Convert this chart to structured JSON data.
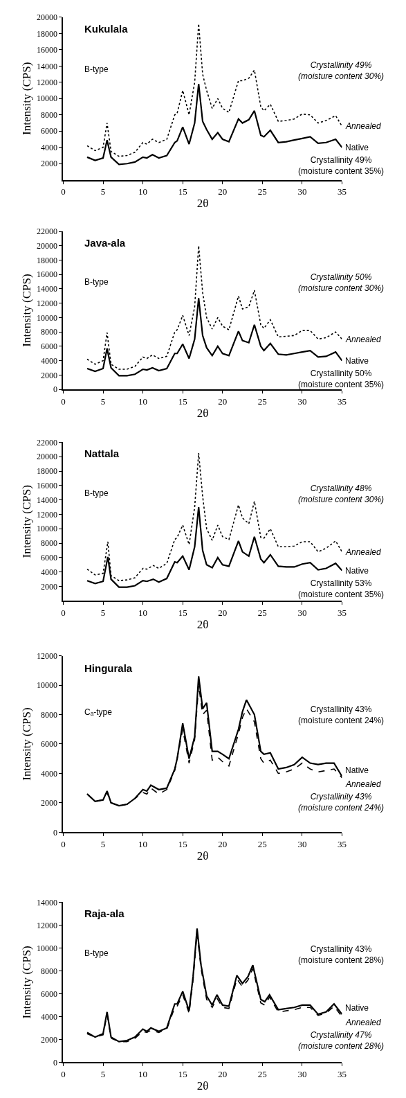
{
  "chart_data": [
    {
      "type": "line",
      "title": "Kukulala",
      "subtitle": "B-type",
      "xlabel": "2θ",
      "ylabel": "Intensity (CPS)",
      "xlim": [
        0,
        35
      ],
      "xticks": [
        0,
        5,
        10,
        15,
        20,
        25,
        30,
        35
      ],
      "ylim": [
        0,
        20000
      ],
      "yticks": [
        2000,
        4000,
        6000,
        8000,
        10000,
        12000,
        14000,
        16000,
        18000,
        20000
      ],
      "annotations": [
        "Crystallinity 49%\n(moisture content 30%)",
        "Crystallinity 49%\n(moisture content 35%)"
      ],
      "x": [
        3,
        4,
        5,
        5.5,
        6,
        7,
        8,
        9,
        10,
        10.5,
        11.2,
        12,
        13,
        14,
        14.3,
        15,
        15.8,
        16.5,
        17,
        17.5,
        18,
        18.7,
        19.4,
        20,
        20.8,
        22,
        22.5,
        23.3,
        24,
        24.8,
        25.2,
        26,
        27,
        28,
        29,
        30,
        31,
        32,
        33,
        34.2,
        35
      ],
      "series": [
        {
          "name": "Annealed",
          "color": "#000000",
          "line_style": "dotted",
          "values": [
            4200,
            3600,
            4000,
            7000,
            3500,
            2900,
            3000,
            3400,
            4600,
            4400,
            5000,
            4600,
            5000,
            8000,
            8200,
            11000,
            8000,
            12000,
            19200,
            13000,
            11000,
            8800,
            10000,
            8800,
            8300,
            12200,
            12200,
            12500,
            13500,
            9000,
            8500,
            9300,
            7200,
            7300,
            7500,
            8100,
            8000,
            7000,
            7300,
            7900,
            6600
          ]
        },
        {
          "name": "Native",
          "color": "#000000",
          "line_style": "solid",
          "values": [
            2800,
            2400,
            2700,
            4900,
            2800,
            1900,
            2000,
            2200,
            2800,
            2700,
            3100,
            2700,
            3000,
            4600,
            4800,
            6500,
            4400,
            7000,
            11800,
            7200,
            6200,
            5000,
            5800,
            5000,
            4700,
            7500,
            7000,
            7400,
            8500,
            5500,
            5300,
            6100,
            4600,
            4700,
            4900,
            5100,
            5300,
            4500,
            4600,
            5000,
            4000
          ]
        }
      ]
    },
    {
      "type": "line",
      "title": "Java-ala",
      "subtitle": "B-type",
      "xlabel": "2θ",
      "ylabel": "Intensity (CPS)",
      "xlim": [
        0,
        35
      ],
      "xticks": [
        0,
        5,
        10,
        15,
        20,
        25,
        30,
        35
      ],
      "ylim": [
        0,
        22000
      ],
      "yticks": [
        0,
        2000,
        4000,
        6000,
        8000,
        10000,
        12000,
        14000,
        16000,
        18000,
        20000,
        22000
      ],
      "annotations": [
        "Crystallinity 50%\n(moisture content 30%)",
        "Crystallinity 50%\n(moisture content 35%)"
      ],
      "x": [
        3,
        4,
        5,
        5.5,
        6,
        7,
        8,
        9,
        10,
        10.5,
        11.2,
        12,
        13,
        14,
        14.3,
        15,
        15.8,
        16.5,
        17,
        17.5,
        18,
        18.7,
        19.4,
        20,
        20.8,
        22,
        22.5,
        23.3,
        24,
        24.8,
        25.2,
        26,
        27,
        28,
        29,
        30,
        31,
        32,
        33,
        34.2,
        35
      ],
      "series": [
        {
          "name": "Annealed",
          "color": "#000000",
          "line_style": "dotted",
          "values": [
            4200,
            3500,
            4000,
            7900,
            3500,
            2800,
            2800,
            3200,
            4500,
            4300,
            4800,
            4300,
            4600,
            8000,
            8300,
            10300,
            7500,
            11500,
            20000,
            13500,
            10000,
            8400,
            10000,
            8800,
            8300,
            13000,
            11200,
            11500,
            13800,
            9000,
            8500,
            9700,
            7300,
            7400,
            7500,
            8200,
            8200,
            7000,
            7200,
            8000,
            7000
          ]
        },
        {
          "name": "Native",
          "color": "#000000",
          "line_style": "solid",
          "values": [
            2900,
            2500,
            2900,
            5700,
            3000,
            1900,
            1900,
            2100,
            2800,
            2700,
            3000,
            2600,
            2900,
            5000,
            5000,
            6300,
            4300,
            7000,
            12700,
            7500,
            5800,
            4700,
            6000,
            5000,
            4700,
            8100,
            6800,
            6500,
            9000,
            6000,
            5400,
            6400,
            4900,
            4800,
            5000,
            5200,
            5400,
            4500,
            4600,
            5200,
            4000
          ]
        }
      ]
    },
    {
      "type": "line",
      "title": "Nattala",
      "subtitle": "B-type",
      "xlabel": "2θ",
      "ylabel": "Intensity (CPS)",
      "xlim": [
        0,
        35
      ],
      "xticks": [
        0,
        5,
        10,
        15,
        20,
        25,
        30,
        35
      ],
      "ylim": [
        0,
        22000
      ],
      "yticks": [
        2000,
        4000,
        6000,
        8000,
        10000,
        12000,
        14000,
        16000,
        18000,
        20000,
        22000
      ],
      "annotations": [
        "Crystallinity 48%\n(moisture content 30%)",
        "Crystallinity 53%\n(moisture content 35%)"
      ],
      "x": [
        3,
        4,
        5,
        5.6,
        6,
        7,
        8,
        9,
        10,
        10.5,
        11.3,
        12,
        13,
        14,
        14.3,
        15,
        15.8,
        16.5,
        17,
        17.5,
        18,
        18.7,
        19.4,
        20,
        20.8,
        22,
        22.5,
        23.3,
        24,
        24.8,
        25.2,
        26,
        27,
        28,
        29,
        30,
        31,
        32,
        33,
        34.2,
        35
      ],
      "series": [
        {
          "name": "Annealed",
          "color": "#000000",
          "line_style": "dotted",
          "values": [
            4400,
            3600,
            3800,
            8200,
            3500,
            2800,
            2900,
            3200,
            4500,
            4400,
            4900,
            4500,
            5200,
            8500,
            8800,
            10500,
            7800,
            13000,
            20500,
            14500,
            10000,
            8400,
            10500,
            8900,
            8500,
            13300,
            11500,
            10700,
            13800,
            8800,
            8700,
            10000,
            7500,
            7500,
            7600,
            8200,
            8200,
            6800,
            7300,
            8300,
            6800
          ]
        },
        {
          "name": "Native",
          "color": "#000000",
          "line_style": "solid",
          "values": [
            2800,
            2400,
            2700,
            6100,
            3000,
            1900,
            1900,
            2100,
            2800,
            2700,
            3000,
            2600,
            3100,
            5400,
            5300,
            6200,
            4300,
            7500,
            13000,
            7000,
            5000,
            4600,
            6000,
            5000,
            4800,
            8300,
            6800,
            6200,
            8900,
            5800,
            5300,
            6400,
            4800,
            4700,
            4700,
            5100,
            5300,
            4300,
            4500,
            5200,
            4200
          ]
        }
      ]
    },
    {
      "type": "line",
      "title": "Hingurala",
      "subtitle": "Cₐ-type",
      "xlabel": "2θ",
      "ylabel": "Intensity (CPS)",
      "xlim": [
        0,
        35
      ],
      "xticks": [
        0,
        5,
        10,
        15,
        20,
        25,
        30,
        35
      ],
      "ylim": [
        0,
        12000
      ],
      "yticks": [
        0,
        2000,
        4000,
        6000,
        8000,
        10000,
        12000
      ],
      "annotations": [
        "Crystallinity 43%\n(moisture content 24%)",
        "Crystallinity 43%\n(moisture content 24%)"
      ],
      "x": [
        3,
        4,
        5,
        5.5,
        6,
        7,
        8,
        9,
        10,
        10.5,
        11,
        12,
        13,
        14,
        14.3,
        15,
        15.8,
        16.5,
        17,
        17.5,
        18,
        18.7,
        19.4,
        20,
        20.8,
        22,
        22.5,
        23,
        24,
        24.8,
        25.2,
        26,
        27,
        28,
        29,
        30,
        31,
        32,
        33,
        34,
        35
      ],
      "series": [
        {
          "name": "Native",
          "color": "#000000",
          "line_style": "solid",
          "values": [
            2600,
            2100,
            2200,
            2800,
            2000,
            1800,
            1900,
            2300,
            2900,
            2800,
            3200,
            2900,
            3000,
            4300,
            5000,
            7400,
            5000,
            6500,
            10600,
            8400,
            8800,
            5500,
            5500,
            5300,
            5000,
            7000,
            8200,
            9000,
            8000,
            5500,
            5300,
            5400,
            4300,
            4400,
            4600,
            5100,
            4700,
            4600,
            4700,
            4700,
            3800
          ]
        },
        {
          "name": "Annealed",
          "color": "#000000",
          "line_style": "dashed",
          "values": [
            2600,
            2100,
            2200,
            2700,
            2000,
            1800,
            1900,
            2300,
            2700,
            2600,
            3000,
            2600,
            2900,
            4200,
            5000,
            7000,
            4700,
            6300,
            10000,
            8000,
            8300,
            4900,
            5100,
            4800,
            4500,
            6700,
            7800,
            8400,
            7500,
            5000,
            4700,
            4900,
            4000,
            4100,
            4300,
            4700,
            4300,
            4100,
            4200,
            4300,
            3700
          ]
        }
      ]
    },
    {
      "type": "line",
      "title": "Raja-ala",
      "subtitle": "B-type",
      "xlabel": "2θ",
      "ylabel": "Intensity (CPS)",
      "xlim": [
        0,
        35
      ],
      "xticks": [
        0,
        5,
        10,
        15,
        20,
        25,
        30,
        35
      ],
      "ylim": [
        0,
        14000
      ],
      "yticks": [
        0,
        2000,
        4000,
        6000,
        8000,
        10000,
        12000,
        14000
      ],
      "annotations": [
        "Crystallinity 43%\n(moisture content 28%)",
        "Crystallinity 47%\n(moisture content 28%)"
      ],
      "x": [
        3,
        4,
        5,
        5.5,
        6,
        7,
        8,
        9,
        10,
        10.5,
        11,
        12,
        13,
        14,
        14.3,
        15,
        15.8,
        16.3,
        16.8,
        17.3,
        18,
        18.7,
        19.3,
        20,
        20.8,
        21.8,
        22.5,
        23.2,
        23.8,
        24.8,
        25.3,
        25.9,
        27,
        28,
        29,
        30,
        31,
        32,
        33,
        34,
        35
      ],
      "series": [
        {
          "name": "Native",
          "color": "#000000",
          "line_style": "solid",
          "values": [
            2600,
            2200,
            2500,
            4400,
            2200,
            1800,
            1900,
            2200,
            2900,
            2700,
            3000,
            2700,
            3000,
            5100,
            5100,
            6200,
            4500,
            7500,
            11700,
            8500,
            5800,
            5000,
            5900,
            5000,
            4900,
            7600,
            6900,
            7500,
            8500,
            5500,
            5300,
            5900,
            4600,
            4700,
            4800,
            5000,
            5000,
            4200,
            4400,
            5100,
            4200
          ]
        },
        {
          "name": "Annealed",
          "color": "#000000",
          "line_style": "dashed",
          "values": [
            2500,
            2200,
            2400,
            4200,
            2100,
            1800,
            1800,
            2100,
            2700,
            2600,
            2800,
            2600,
            2900,
            4800,
            4900,
            5900,
            4300,
            7200,
            11300,
            8200,
            5500,
            4800,
            5600,
            4800,
            4700,
            7300,
            6600,
            7200,
            8200,
            5200,
            5000,
            5700,
            4400,
            4500,
            4600,
            4800,
            4800,
            4100,
            4300,
            4900,
            4000
          ]
        }
      ]
    }
  ]
}
